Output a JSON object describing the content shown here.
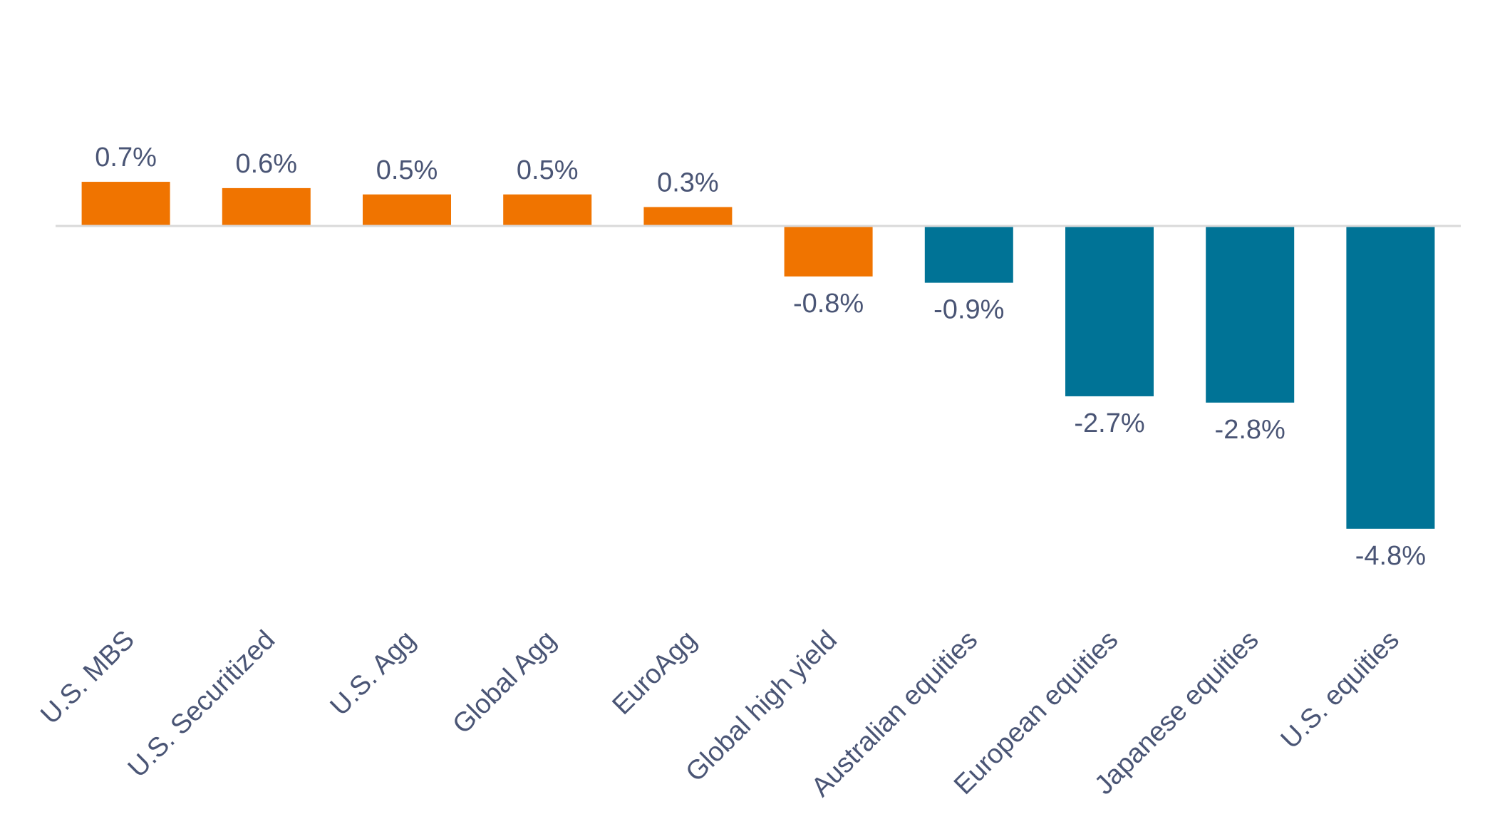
{
  "chart_data": {
    "type": "bar",
    "title": "",
    "xlabel": "",
    "ylabel": "",
    "ylim": [
      -6.4,
      1.6
    ],
    "grid": false,
    "legend": "none",
    "categories": [
      "U.S. MBS",
      "U.S. Securitized",
      "U.S. Agg",
      "Global Agg",
      "EuroAgg",
      "Global high yield",
      "Australian equities",
      "European equities",
      "Japanese equities",
      "U.S. equities"
    ],
    "values": [
      0.7,
      0.6,
      0.5,
      0.5,
      0.3,
      -0.8,
      -0.9,
      -2.7,
      -2.8,
      -4.8
    ],
    "value_labels": [
      "0.7%",
      "0.6%",
      "0.5%",
      "0.5%",
      "0.3%",
      "-0.8%",
      "-0.9%",
      "-2.7%",
      "-2.8%",
      "-4.8%"
    ],
    "bar_groups": [
      "fixed",
      "fixed",
      "fixed",
      "fixed",
      "fixed",
      "fixed",
      "equity",
      "equity",
      "equity",
      "equity"
    ]
  },
  "colors": {
    "fixed": "#F07400",
    "equity": "#007396",
    "label_text": "#4A5575",
    "axis_line": "#D9D9D9"
  }
}
